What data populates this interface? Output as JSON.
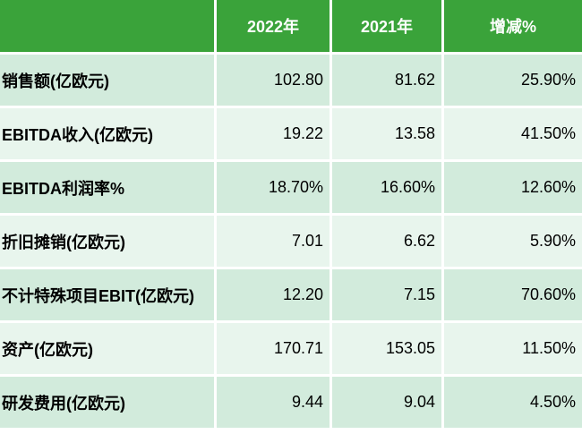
{
  "chart_data": {
    "type": "table",
    "columns": [
      "",
      "2022年",
      "2021年",
      "增减%"
    ],
    "rows": [
      {
        "label": "销售额(亿欧元)",
        "y2022": "102.80",
        "y2021": "81.62",
        "change": "25.90%"
      },
      {
        "label": "EBITDA收入(亿欧元)",
        "y2022": "19.22",
        "y2021": "13.58",
        "change": "41.50%"
      },
      {
        "label": "EBITDA利润率%",
        "y2022": "18.70%",
        "y2021": "16.60%",
        "change": "12.60%"
      },
      {
        "label": "折旧摊销(亿欧元)",
        "y2022": "7.01",
        "y2021": "6.62",
        "change": "5.90%"
      },
      {
        "label": "不计特殊项目EBIT(亿欧元)",
        "y2022": "12.20",
        "y2021": "7.15",
        "change": "70.60%"
      },
      {
        "label": "资产(亿欧元)",
        "y2022": "170.71",
        "y2021": "153.05",
        "change": "11.50%"
      },
      {
        "label": "研发费用(亿欧元)",
        "y2022": "9.44",
        "y2021": "9.04",
        "change": "4.50%"
      }
    ],
    "layout_hints": {
      "header_alignment": "center",
      "label_alignment": "left",
      "value_alignment": "right",
      "grid": "white separators between all cells"
    }
  },
  "colors": {
    "header_bg": "#3AA33A",
    "header_text": "#FFFFFF",
    "row_odd_bg": "#D2EBDC",
    "row_even_bg": "#E8F5ED",
    "body_text": "#000000",
    "separator": "#FFFFFF"
  }
}
